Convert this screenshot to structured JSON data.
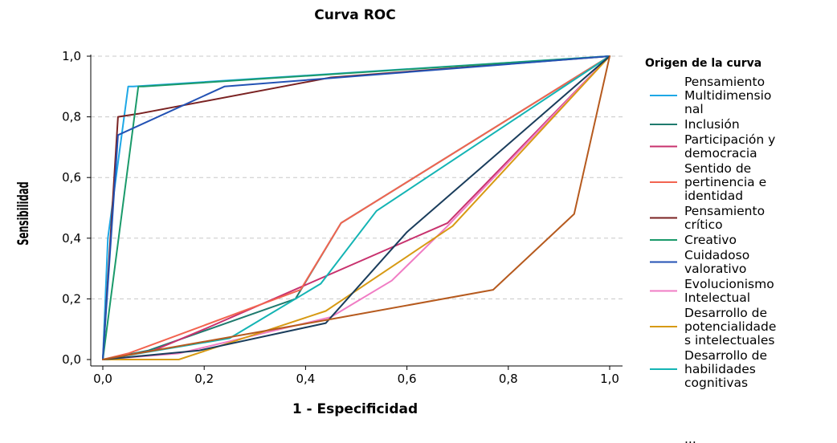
{
  "chart_data": {
    "type": "line",
    "title": "Curva ROC",
    "xlabel": "1 - Especificidad",
    "ylabel": "Sensibilidad",
    "xlim": [
      0,
      1
    ],
    "ylim": [
      0,
      1
    ],
    "x_ticks": [
      "0,0",
      "0,2",
      "0,4",
      "0,6",
      "0,8",
      "1,0"
    ],
    "y_ticks": [
      "0,0",
      "0,2",
      "0,4",
      "0,6",
      "0,8",
      "1,0"
    ],
    "grid": "horizontal dashed",
    "legend": {
      "title": "Origen de la curva",
      "position": "right",
      "overflow_text": "..."
    },
    "series": [
      {
        "name": "Pensamiento Multidimensional",
        "legend_lines": [
          "Pensamiento",
          "Multidimensio",
          "nal"
        ],
        "color": "#1ea8e6",
        "points": [
          [
            0,
            0
          ],
          [
            0.01,
            0.4
          ],
          [
            0.05,
            0.9
          ],
          [
            0.06,
            0.9
          ],
          [
            1,
            1
          ]
        ]
      },
      {
        "name": "Inclusión",
        "legend_lines": [
          "Inclusión"
        ],
        "color": "#1f7a6e",
        "points": [
          [
            0,
            0
          ],
          [
            0.09,
            0.03
          ],
          [
            0.38,
            0.2
          ],
          [
            0.47,
            0.45
          ],
          [
            1,
            1
          ]
        ]
      },
      {
        "name": "Participación y democracia",
        "legend_lines": [
          "Participación y",
          "democracia"
        ],
        "color": "#c8326e",
        "points": [
          [
            0,
            0
          ],
          [
            0.1,
            0.03
          ],
          [
            0.2,
            0.1
          ],
          [
            0.68,
            0.45
          ],
          [
            1,
            1
          ]
        ]
      },
      {
        "name": "Sentido de pertinencia e identidad",
        "legend_lines": [
          "Sentido de",
          "pertinencia e",
          "identidad"
        ],
        "color": "#f26450",
        "points": [
          [
            0,
            0
          ],
          [
            0.05,
            0.02
          ],
          [
            0.39,
            0.23
          ],
          [
            0.47,
            0.45
          ],
          [
            1,
            1
          ]
        ]
      },
      {
        "name": "Pensamiento crítico",
        "legend_lines": [
          "Pensamiento",
          "crítico"
        ],
        "color": "#7a2222",
        "points": [
          [
            0,
            0
          ],
          [
            0.03,
            0.8
          ],
          [
            0.07,
            0.81
          ],
          [
            0.45,
            0.93
          ],
          [
            1,
            1
          ]
        ]
      },
      {
        "name": "Creativo",
        "legend_lines": [
          "Creativo"
        ],
        "color": "#1a9a6a",
        "points": [
          [
            0,
            0
          ],
          [
            0.07,
            0.9
          ],
          [
            0.08,
            0.9
          ],
          [
            1,
            1
          ]
        ]
      },
      {
        "name": "Cuidadoso valorativo",
        "legend_lines": [
          "Cuidadoso",
          "valorativo"
        ],
        "color": "#2352b4",
        "points": [
          [
            0,
            0
          ],
          [
            0.03,
            0.74
          ],
          [
            0.24,
            0.9
          ],
          [
            1,
            1
          ]
        ]
      },
      {
        "name": "Evolucionismo Intelectual",
        "legend_lines": [
          "Evolucionismo",
          "Intelectual"
        ],
        "color": "#f07cc4",
        "points": [
          [
            0,
            0
          ],
          [
            0.15,
            0.02
          ],
          [
            0.45,
            0.14
          ],
          [
            0.57,
            0.26
          ],
          [
            0.68,
            0.44
          ],
          [
            1,
            1
          ]
        ]
      },
      {
        "name": "Desarrollo de potencialidades intelectuales",
        "legend_lines": [
          "Desarrollo de",
          "potencialidade",
          "s intelectuales"
        ],
        "color": "#d79a14",
        "points": [
          [
            0,
            0
          ],
          [
            0.15,
            0
          ],
          [
            0.44,
            0.16
          ],
          [
            0.69,
            0.44
          ],
          [
            1,
            1
          ]
        ]
      },
      {
        "name": "Desarrollo de habilidades cognitivas",
        "legend_lines": [
          "Desarrollo de",
          "habilidades",
          "cognitivas"
        ],
        "color": "#14b4b4",
        "points": [
          [
            0,
            0
          ],
          [
            0.25,
            0.07
          ],
          [
            0.43,
            0.25
          ],
          [
            0.54,
            0.49
          ],
          [
            1,
            1
          ]
        ]
      },
      {
        "name": "",
        "legend_lines": [],
        "color": "#1a3d5c",
        "points": [
          [
            0,
            0
          ],
          [
            0.19,
            0.03
          ],
          [
            0.44,
            0.12
          ],
          [
            0.6,
            0.42
          ],
          [
            1,
            1
          ]
        ]
      },
      {
        "name": "",
        "legend_lines": [],
        "color": "#b65a1e",
        "points": [
          [
            0,
            0
          ],
          [
            0.44,
            0.13
          ],
          [
            0.77,
            0.23
          ],
          [
            0.93,
            0.48
          ],
          [
            1,
            1
          ]
        ]
      }
    ]
  }
}
